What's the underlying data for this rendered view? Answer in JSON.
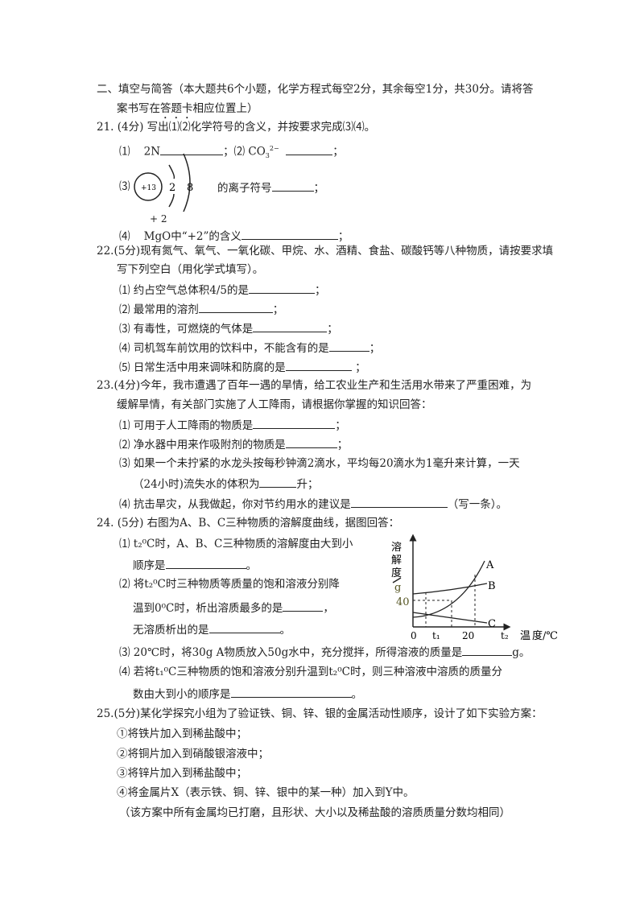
{
  "section": {
    "title": "二、填空与简答（本大题共6个小题，化学方程式每空2分，其余每空1分，共30分。请将答",
    "title2a": "案书写在",
    "title2b": "答题卡",
    "title2c": "相应位置上）"
  },
  "q21": {
    "head": "21. (4分) 写出⑴⑵化学符号的含义，并按要求完成⑶⑷。",
    "p1_num": "⑴",
    "p1": "2N",
    "sep": "；⑵ CO",
    "p2_sup": "2−",
    "p2_sub": "3",
    "semi": "；",
    "p3_num": "⑶",
    "nucleus": "+13",
    "e1": "2",
    "e2": "8",
    "p3": "的离子符号",
    "valence": "+ 2",
    "p4_num": "⑷",
    "p4": "MgO中“+2”的含义"
  },
  "q22": {
    "head": "22.(5分)现有氮气、氧气、一氧化碳、甲烷、水、酒精、食盐、碳酸钙等八种物质，请按要求填",
    "head2": "写下列空白（用化学式填写）。",
    "items": [
      "⑴ 约占空气总体积4/5的是",
      "⑵ 最常用的溶剂",
      "⑶ 有毒性，可燃烧的气体是",
      "⑷ 司机驾车前饮用的饮料中，不能含有的是",
      "⑸ 日常生活中用来调味和防腐的是"
    ]
  },
  "q23": {
    "head": "23.(4分)今年，我市遭遇了百年一遇的旱情，给工农业生产和生活用水带来了严重困难，为",
    "head2": "缓解旱情，有关部门实施了人工降雨，请根据你掌握的知识回答：",
    "i1": "⑴ 可用于人工降雨的物质是",
    "i2": "⑵ 净水器中用来作吸附剂的物质是",
    "i3": "⑶ 如果一个未拧紧的水龙头按每秒钟滴2滴水，平均每20滴水为1毫升来计算，一天",
    "i3b": "（24小时)流失水的体积为",
    "i3c": "升；",
    "i4": "⑷ 抗击旱灾，从我做起，你对节约用水的建议是",
    "i4c": "（写一条）。"
  },
  "q24": {
    "head": "24. (5分)   右图为A、B、C三种物质的溶解度曲线，据图回答：",
    "i1": "⑴ t₂⁰C时，A、B、C三种物质的溶解度由大到小",
    "i1b": "顺序是",
    "i2": "⑵ 将t₂⁰C时三种物质等质量的饱和溶液分别降",
    "i2b": "温到0⁰C时，析出溶质最多的是",
    "i2c": "无溶质析出的是",
    "i3": "⑶ 20℃时，将30g A物质放入50g水中，充分搅拌，所得溶液的质量是",
    "i3c": "g。",
    "i4": "⑷ 若将t₁⁰C三种物质的饱和溶液分别升温到t₂⁰C时，则三种溶液中溶质的质量分",
    "i4b": "数由大到小的顺序是",
    "figure": {
      "ylabel": [
        "溶",
        "解",
        "度",
        "g"
      ],
      "ytick": "40",
      "xticks": [
        "0",
        "t₁",
        "20",
        "t₂"
      ],
      "xlabel1": "温",
      "xlabel2": "度/℃",
      "curves": [
        "A",
        "B",
        "C"
      ]
    }
  },
  "q25": {
    "head": "25.(5分)某化学探究小组为了验证铁、铜、锌、银的金属活动性顺序，设计了如下实验方案：",
    "steps": [
      "①将铁片加入到稀盐酸中；",
      "②将铜片加入到硝酸银溶液中；",
      "③将锌片加入到稀盐酸中；",
      "④将金属片X（表示铁、铜、锌、银中的某一种）加入到Y中。"
    ],
    "note": "（该方案中所有金属均已打磨，且形状、大小以及稀盐酸的溶质质量分数均相同）"
  },
  "punct": {
    "semi": "；",
    "period": "。",
    "comma": "，"
  }
}
